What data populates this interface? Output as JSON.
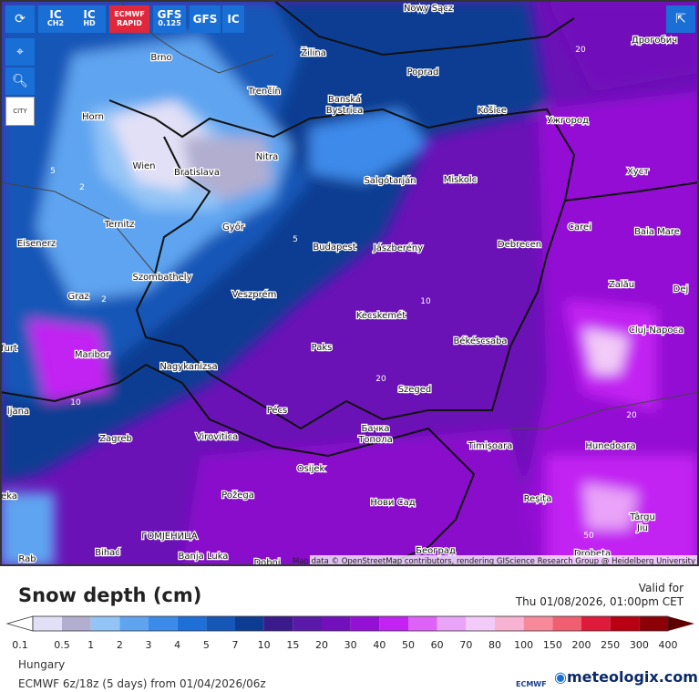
{
  "toolbar": {
    "models": [
      {
        "text": "IC",
        "sub": "CH2"
      },
      {
        "text": "IC",
        "sub": "HD"
      },
      {
        "text": "ECMWF",
        "sub": "RAPID"
      },
      {
        "text": "GFS",
        "sub": "0.125"
      },
      {
        "text": "GFS"
      },
      {
        "text": "IC"
      }
    ],
    "city_button": "CITY"
  },
  "map": {
    "cities": [
      "Nowy Sącz",
      "Brno",
      "Žilina",
      "Дрогобич",
      "Poprad",
      "Trenčín",
      "Banská",
      "Bystrica",
      "Košice",
      "Ужгород",
      "Horn",
      "Wien",
      "Bratislava",
      "Nitra",
      "Хуст",
      "Salgótarján",
      "Miskolc",
      "Ternitz",
      "Győr",
      "Carei",
      "Baia Mare",
      "Eisenerz",
      "Budapest",
      "Jászberény",
      "Debrecen",
      "Szombathely",
      "Graz",
      "Veszprém",
      "Zalău",
      "Dej",
      "Kecskemét",
      "Cluj-Napoca",
      "furt",
      "Paks",
      "Békéscsaba",
      "Maribor",
      "Nagykanizsa",
      "Szeged",
      "ljana",
      "Pécs",
      "Бачка",
      "Топола",
      "Virovitica",
      "Zagreb",
      "Hunedoara",
      "Timișoara",
      "Osijek",
      "Požega",
      "Нови Сад",
      "Reșița",
      "Târgu",
      "Jiu",
      "ГОМЈЕНИЦА",
      "Bihać",
      "Banja Luka",
      "Doboj",
      "Београд",
      "Drobeta",
      "Rab",
      "eka"
    ],
    "contour_labels": [
      "2",
      "2",
      "5",
      "10",
      "20",
      "20",
      "5",
      "20",
      "50",
      "10"
    ],
    "attribution": "Map data © OpenStreetMap contributors, rendering GIScience Research Group @ Heidelberg University"
  },
  "legend": {
    "title": "Snow depth (cm)",
    "valid_label": "Valid for",
    "valid_time": "Thu 01/08/2026, 01:00pm CET",
    "items": [
      {
        "label": "0.1",
        "color": "#e2e0f6"
      },
      {
        "label": "0.5",
        "color": "#b1aed0"
      },
      {
        "label": "1",
        "color": "#92c4f6"
      },
      {
        "label": "2",
        "color": "#5ea4f0"
      },
      {
        "label": "3",
        "color": "#3c8aea"
      },
      {
        "label": "4",
        "color": "#1f6fd9"
      },
      {
        "label": "5",
        "color": "#1557b7"
      },
      {
        "label": "7",
        "color": "#0c3d92"
      },
      {
        "label": "10",
        "color": "#3b1a8b"
      },
      {
        "label": "15",
        "color": "#5b19a9"
      },
      {
        "label": "20",
        "color": "#7211bb"
      },
      {
        "label": "30",
        "color": "#9410d4"
      },
      {
        "label": "40",
        "color": "#c222f2"
      },
      {
        "label": "50",
        "color": "#df62f8"
      },
      {
        "label": "60",
        "color": "#e9a3f8"
      },
      {
        "label": "70",
        "color": "#f2cbf8"
      },
      {
        "label": "80",
        "color": "#f8b2d2"
      },
      {
        "label": "100",
        "color": "#f8899a"
      },
      {
        "label": "150",
        "color": "#ef5f70"
      },
      {
        "label": "200",
        "color": "#e01a3a"
      },
      {
        "label": "250",
        "color": "#b80012"
      },
      {
        "label": "300",
        "color": "#8c0008"
      },
      {
        "label": "400",
        "color": "#5e0000"
      }
    ]
  },
  "footer": {
    "region": "Hungary",
    "run": "ECMWF 6z/18z (5 days) from 01/04/2026/06z",
    "ecmwf_logo": "ECMWF",
    "brand": "meteologix.com"
  }
}
